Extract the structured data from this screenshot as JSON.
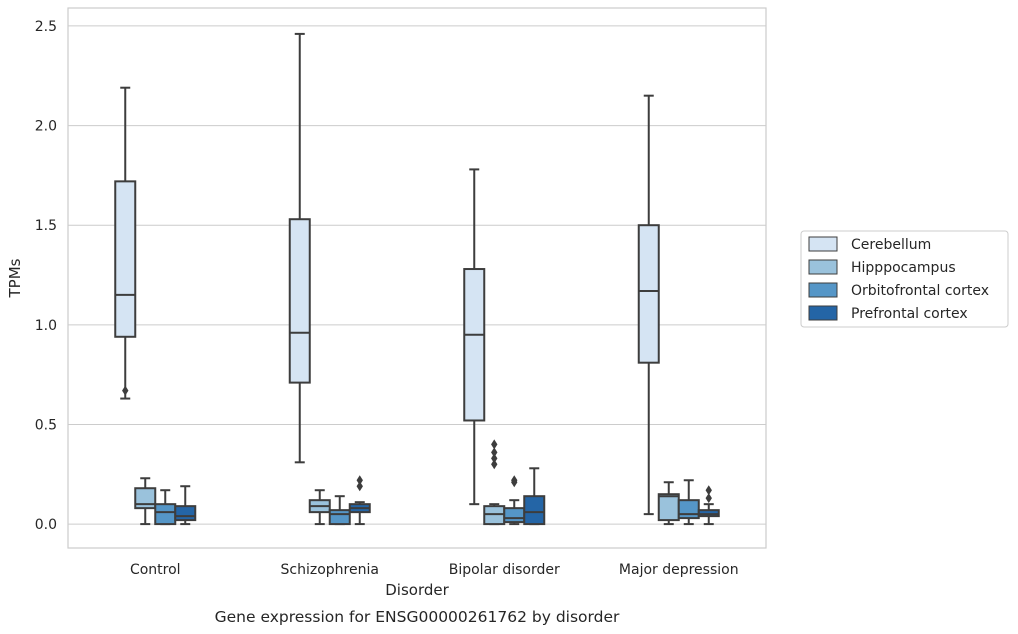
{
  "chart_data": {
    "type": "boxplot",
    "title": "",
    "caption": "Gene expression for ENSG00000261762 by disorder",
    "xlabel": "Disorder",
    "ylabel": "TPMs",
    "ylim": [
      -0.12,
      2.59
    ],
    "yticks": [
      "0.0",
      "0.5",
      "1.0",
      "1.5",
      "2.0",
      "2.5"
    ],
    "grid": true,
    "legend_position": "right",
    "categories": [
      "Control",
      "Schizophrenia",
      "Bipolar disorder",
      "Major depression"
    ],
    "series": [
      {
        "name": "Cerebellum",
        "color": "#d5e4f3",
        "boxes": [
          {
            "whislo": 0.63,
            "q1": 0.94,
            "med": 1.15,
            "q3": 1.72,
            "whishi": 2.19,
            "fliers": [
              0.67
            ]
          },
          {
            "whislo": 0.31,
            "q1": 0.71,
            "med": 0.96,
            "q3": 1.53,
            "whishi": 2.46,
            "fliers": []
          },
          {
            "whislo": 0.1,
            "q1": 0.52,
            "med": 0.95,
            "q3": 1.28,
            "whishi": 1.78,
            "fliers": []
          },
          {
            "whislo": 0.05,
            "q1": 0.81,
            "med": 1.17,
            "q3": 1.5,
            "whishi": 2.15,
            "fliers": []
          }
        ]
      },
      {
        "name": "Hipppocampus",
        "color": "#9ac2dc",
        "boxes": [
          {
            "whislo": 0.0,
            "q1": 0.08,
            "med": 0.1,
            "q3": 0.18,
            "whishi": 0.23,
            "fliers": []
          },
          {
            "whislo": 0.0,
            "q1": 0.06,
            "med": 0.09,
            "q3": 0.12,
            "whishi": 0.17,
            "fliers": []
          },
          {
            "whislo": 0.0,
            "q1": 0.0,
            "med": 0.05,
            "q3": 0.09,
            "whishi": 0.1,
            "fliers": [
              0.3,
              0.33,
              0.36,
              0.4
            ]
          },
          {
            "whislo": 0.0,
            "q1": 0.02,
            "med": 0.14,
            "q3": 0.15,
            "whishi": 0.21,
            "fliers": []
          }
        ]
      },
      {
        "name": "Orbitofrontal cortex",
        "color": "#5596c7",
        "boxes": [
          {
            "whislo": 0.0,
            "q1": 0.0,
            "med": 0.06,
            "q3": 0.1,
            "whishi": 0.17,
            "fliers": []
          },
          {
            "whislo": 0.0,
            "q1": 0.0,
            "med": 0.05,
            "q3": 0.07,
            "whishi": 0.14,
            "fliers": []
          },
          {
            "whislo": 0.0,
            "q1": 0.01,
            "med": 0.03,
            "q3": 0.08,
            "whishi": 0.12,
            "fliers": [
              0.21,
              0.22
            ]
          },
          {
            "whislo": 0.0,
            "q1": 0.03,
            "med": 0.05,
            "q3": 0.12,
            "whishi": 0.22,
            "fliers": []
          }
        ]
      },
      {
        "name": "Prefrontal cortex",
        "color": "#2465a6",
        "boxes": [
          {
            "whislo": 0.0,
            "q1": 0.02,
            "med": 0.04,
            "q3": 0.09,
            "whishi": 0.19,
            "fliers": []
          },
          {
            "whislo": 0.0,
            "q1": 0.06,
            "med": 0.08,
            "q3": 0.1,
            "whishi": 0.11,
            "fliers": [
              0.19,
              0.22
            ]
          },
          {
            "whislo": 0.0,
            "q1": 0.0,
            "med": 0.06,
            "q3": 0.14,
            "whishi": 0.28,
            "fliers": []
          },
          {
            "whislo": 0.0,
            "q1": 0.04,
            "med": 0.05,
            "q3": 0.07,
            "whishi": 0.1,
            "fliers": [
              0.13,
              0.17
            ]
          }
        ]
      }
    ]
  }
}
